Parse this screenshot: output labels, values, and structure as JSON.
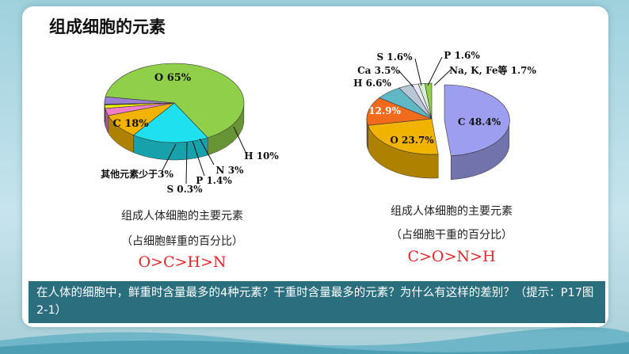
{
  "title": "组成细胞的元素",
  "chart_data": [
    {
      "type": "pie",
      "categories": [
        "O",
        "C",
        "H",
        "N",
        "P",
        "S",
        "其他元素少于"
      ],
      "values": [
        65,
        18,
        10,
        3,
        1.4,
        0.3,
        3
      ],
      "labels": [
        "O 65%",
        "C 18%",
        "H 10%",
        "N 3%",
        "P 1.4%",
        "S 0.3%",
        "其他元素少于3%"
      ],
      "colors": [
        "#8fcf4a",
        "#1ee0ee",
        "#f2b300",
        "#f07dc8",
        "#f8f000",
        "#3333cc",
        "#9b7fd0"
      ],
      "caption": "组成人体细胞的主要元素",
      "subcaption": "（占细胞鲜重的百分比）",
      "order": "O>C>H>N"
    },
    {
      "type": "pie",
      "categories": [
        "C",
        "O",
        "N",
        "H",
        "Ca",
        "S",
        "P",
        "Na, K, Fe等"
      ],
      "values": [
        48.4,
        23.7,
        12.9,
        6.6,
        3.5,
        1.6,
        1.6,
        1.7
      ],
      "labels": [
        "C 48.4%",
        "O 23.7%",
        "N 12.9%",
        "H 6.6%",
        "Ca 3.5%",
        "S 1.6%",
        "P 1.6%",
        "Na, K, Fe等 1.7%"
      ],
      "colors": [
        "#9e9ef0",
        "#f2b300",
        "#f26a1b",
        "#5fb8c4",
        "#b8c7d6",
        "#e8e8f4",
        "#d9f0d0",
        "#8fcf4a"
      ],
      "caption": "组成人体细胞的主要元素",
      "subcaption": "（占细胞干重的百分比）",
      "order": "C>O>N>H"
    }
  ],
  "question": "在人体的细胞中，鲜重时含量最多的4种元素？干重时含量最多的元素？为什么有这样的差别？（提示：P17图2-1）"
}
